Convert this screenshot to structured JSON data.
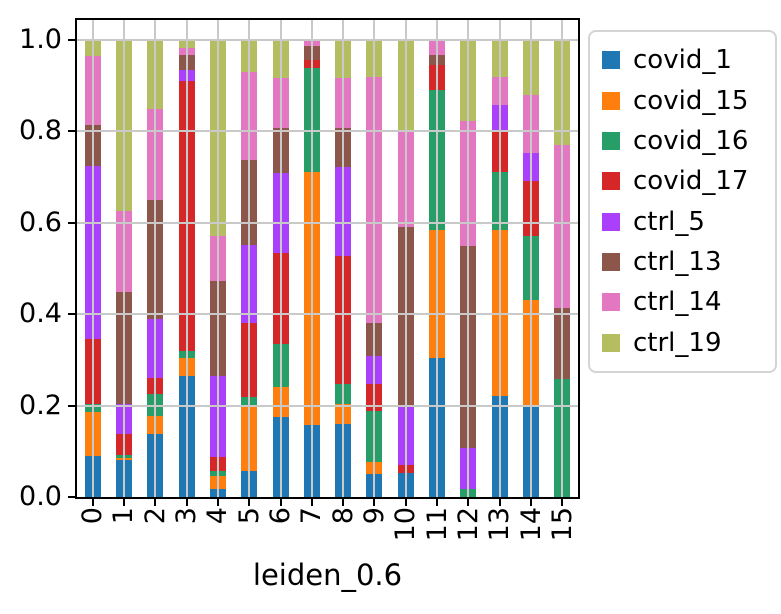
{
  "figure": {
    "background": "#ffffff"
  },
  "axes": {
    "xlabel": "leiden_0.6",
    "ytick_labels": [
      "0.0",
      "0.2",
      "0.4",
      "0.6",
      "0.8",
      "1.0"
    ],
    "spine_color": "#000000",
    "grid_color": "#c9c9c9"
  },
  "chart_data": {
    "type": "bar",
    "stacked": true,
    "normalized": true,
    "xlabel": "leiden_0.6",
    "ylabel": "",
    "ylim": [
      0,
      1.05
    ],
    "grid": true,
    "legend_position": "outside-upper-right",
    "categories": [
      "0",
      "1",
      "2",
      "3",
      "4",
      "5",
      "6",
      "7",
      "8",
      "9",
      "10",
      "11",
      "12",
      "13",
      "14",
      "15"
    ],
    "yticks": [
      0.0,
      0.2,
      0.4,
      0.6,
      0.8,
      1.0
    ],
    "series": [
      {
        "name": "covid_1",
        "color": "#1f77b4",
        "values": [
          0.09,
          0.08,
          0.138,
          0.265,
          0.017,
          0.057,
          0.174,
          0.158,
          0.159,
          0.051,
          0.052,
          0.305,
          0.0,
          0.221,
          0.196,
          0.0
        ]
      },
      {
        "name": "covid_15",
        "color": "#ff7f0e",
        "values": [
          0.095,
          0.005,
          0.04,
          0.04,
          0.029,
          0.14,
          0.066,
          0.554,
          0.044,
          0.025,
          0.0,
          0.28,
          0.0,
          0.364,
          0.236,
          0.0
        ]
      },
      {
        "name": "covid_16",
        "color": "#279e68",
        "values": [
          0.018,
          0.008,
          0.048,
          0.015,
          0.011,
          0.021,
          0.094,
          0.226,
          0.044,
          0.112,
          0.0,
          0.306,
          0.018,
          0.127,
          0.139,
          0.258
        ]
      },
      {
        "name": "covid_17",
        "color": "#d62728",
        "values": [
          0.142,
          0.045,
          0.035,
          0.59,
          0.031,
          0.163,
          0.2,
          0.018,
          0.28,
          0.059,
          0.018,
          0.055,
          0.0,
          0.091,
          0.12,
          0.0
        ]
      },
      {
        "name": "ctrl_5",
        "color": "#aa40fc",
        "values": [
          0.38,
          0.065,
          0.129,
          0.025,
          0.177,
          0.171,
          0.175,
          0.0,
          0.196,
          0.062,
          0.129,
          0.0,
          0.09,
          0.055,
          0.062,
          0.0
        ]
      },
      {
        "name": "ctrl_13",
        "color": "#8c564b",
        "values": [
          0.09,
          0.245,
          0.26,
          0.033,
          0.207,
          0.186,
          0.098,
          0.031,
          0.084,
          0.072,
          0.393,
          0.022,
          0.441,
          0.0,
          0.0,
          0.155
        ]
      },
      {
        "name": "ctrl_14",
        "color": "#e377c2",
        "values": [
          0.15,
          0.177,
          0.2,
          0.015,
          0.099,
          0.193,
          0.109,
          0.011,
          0.109,
          0.539,
          0.211,
          0.032,
          0.273,
          0.062,
          0.127,
          0.357
        ]
      },
      {
        "name": "ctrl_19",
        "color": "#b5bd61",
        "values": [
          0.035,
          0.375,
          0.15,
          0.017,
          0.429,
          0.069,
          0.084,
          0.002,
          0.084,
          0.08,
          0.197,
          0.0,
          0.178,
          0.08,
          0.12,
          0.23
        ]
      }
    ]
  }
}
